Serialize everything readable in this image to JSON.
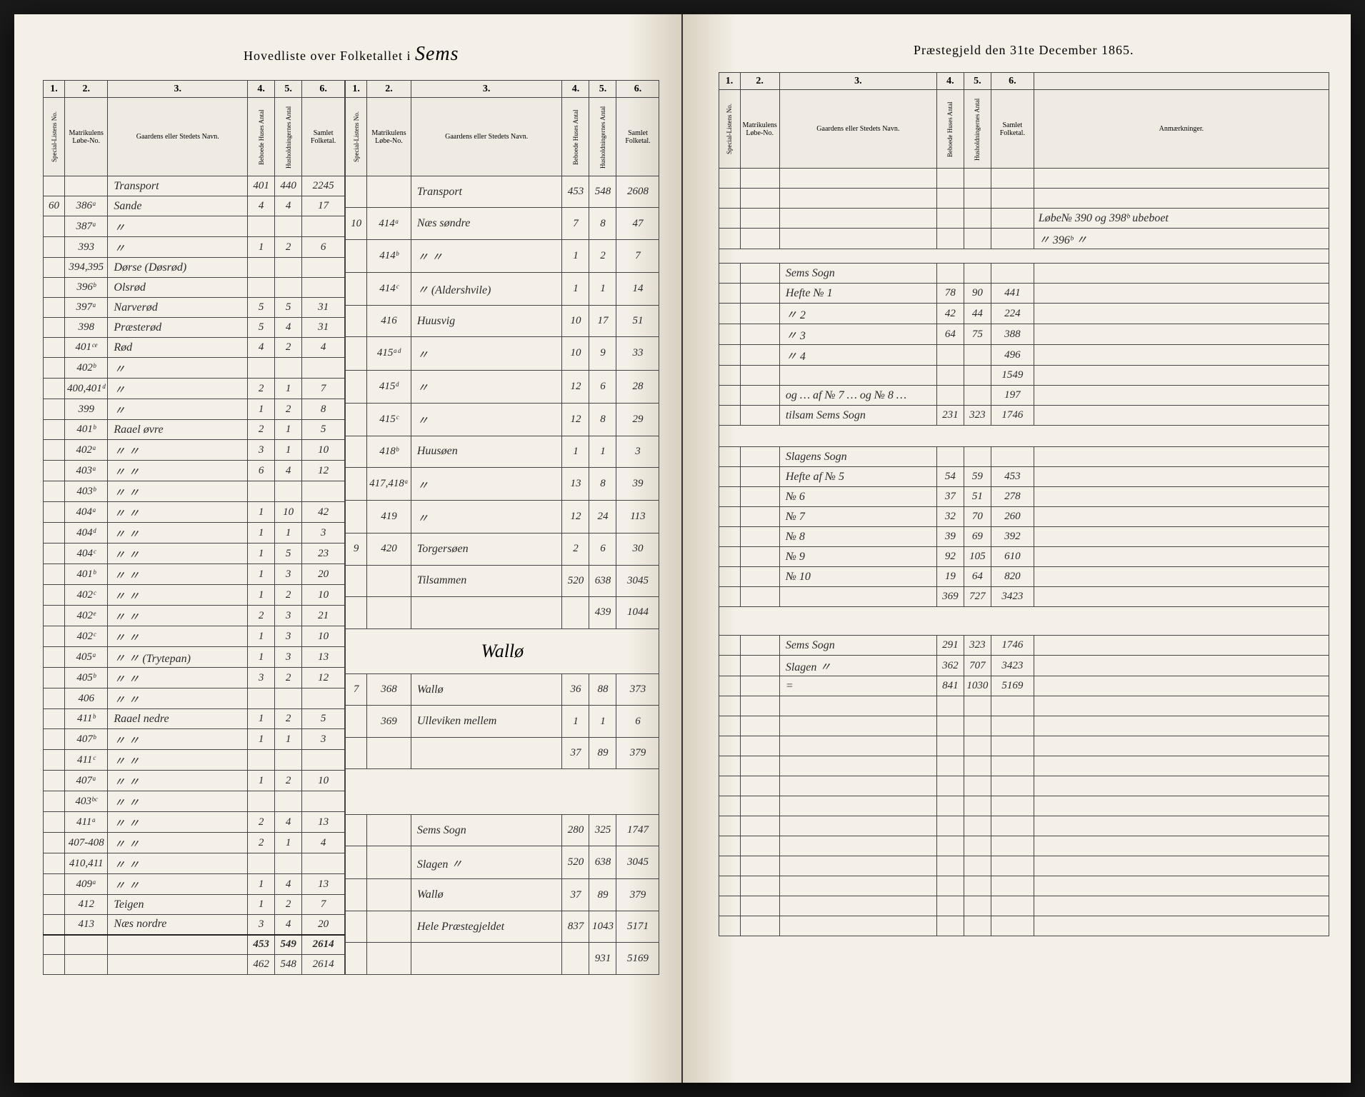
{
  "header": {
    "left_title_prefix": "Hovedliste over Folketallet i",
    "left_title_script": "Sems",
    "right_title": "Præstegjeld den 31te December 1865."
  },
  "columns": {
    "c1": "1.",
    "c2": "2.",
    "c3": "3.",
    "c4": "4.",
    "c5": "5.",
    "c6": "6.",
    "h1": "Special-Listens No.",
    "h2": "Matrikulens Løbe-No.",
    "h3": "Gaardens eller Stedets Navn.",
    "h4": "Beboede Huses Antal",
    "h5": "Husholdningernes Antal",
    "h6": "Samlet Folketal.",
    "remarks": "Anmærkninger."
  },
  "leftA": {
    "rows": [
      {
        "c1": "",
        "c2": "",
        "c3": "Transport",
        "c4": "401",
        "c5": "440",
        "c6": "2245"
      },
      {
        "c1": "60",
        "c2": "386ᵃ",
        "c3": "Sande",
        "c4": "4",
        "c5": "4",
        "c6": "17"
      },
      {
        "c1": "",
        "c2": "387ᵃ",
        "c3": "〃",
        "c4": "",
        "c5": "",
        "c6": ""
      },
      {
        "c1": "",
        "c2": "393",
        "c3": "〃",
        "c4": "1",
        "c5": "2",
        "c6": "6"
      },
      {
        "c1": "",
        "c2": "394,395",
        "c3": "Dørse (Døsrød)",
        "c4": "",
        "c5": "",
        "c6": ""
      },
      {
        "c1": "",
        "c2": "396ᵇ",
        "c3": "Olsrød",
        "c4": "",
        "c5": "",
        "c6": ""
      },
      {
        "c1": "",
        "c2": "397ᵃ",
        "c3": "Narverød",
        "c4": "5",
        "c5": "5",
        "c6": "31"
      },
      {
        "c1": "",
        "c2": "398",
        "c3": "Præsterød",
        "c4": "5",
        "c5": "4",
        "c6": "31"
      },
      {
        "c1": "",
        "c2": "401ᶜᵉ",
        "c3": "Rød",
        "c4": "4",
        "c5": "2",
        "c6": "4"
      },
      {
        "c1": "",
        "c2": "402ᵇ",
        "c3": "〃",
        "c4": "",
        "c5": "",
        "c6": ""
      },
      {
        "c1": "",
        "c2": "400,401ᵈ",
        "c3": "〃",
        "c4": "2",
        "c5": "1",
        "c6": "7"
      },
      {
        "c1": "",
        "c2": "399",
        "c3": "〃",
        "c4": "1",
        "c5": "2",
        "c6": "8"
      },
      {
        "c1": "",
        "c2": "401ᵇ",
        "c3": "Raael øvre",
        "c4": "2",
        "c5": "1",
        "c6": "5"
      },
      {
        "c1": "",
        "c2": "402ᵃ",
        "c3": "〃 〃",
        "c4": "3",
        "c5": "1",
        "c6": "10"
      },
      {
        "c1": "",
        "c2": "403ᵃ",
        "c3": "〃 〃",
        "c4": "6",
        "c5": "4",
        "c6": "12"
      },
      {
        "c1": "",
        "c2": "403ᵇ",
        "c3": "〃 〃",
        "c4": "",
        "c5": "",
        "c6": ""
      },
      {
        "c1": "",
        "c2": "404ᵃ",
        "c3": "〃 〃",
        "c4": "1",
        "c5": "10",
        "c6": "42"
      },
      {
        "c1": "",
        "c2": "404ᵈ",
        "c3": "〃 〃",
        "c4": "1",
        "c5": "1",
        "c6": "3"
      },
      {
        "c1": "",
        "c2": "404ᶜ",
        "c3": "〃 〃",
        "c4": "1",
        "c5": "5",
        "c6": "23"
      },
      {
        "c1": "",
        "c2": "401ᵇ",
        "c3": "〃 〃",
        "c4": "1",
        "c5": "3",
        "c6": "20"
      },
      {
        "c1": "",
        "c2": "402ᶜ",
        "c3": "〃 〃",
        "c4": "1",
        "c5": "2",
        "c6": "10"
      },
      {
        "c1": "",
        "c2": "402ᵉ",
        "c3": "〃 〃",
        "c4": "2",
        "c5": "3",
        "c6": "21"
      },
      {
        "c1": "",
        "c2": "402ᶜ",
        "c3": "〃 〃",
        "c4": "1",
        "c5": "3",
        "c6": "10"
      },
      {
        "c1": "",
        "c2": "405ᵃ",
        "c3": "〃 〃 (Trytepan)",
        "c4": "1",
        "c5": "3",
        "c6": "13"
      },
      {
        "c1": "",
        "c2": "405ᵇ",
        "c3": "〃 〃",
        "c4": "3",
        "c5": "2",
        "c6": "12"
      },
      {
        "c1": "",
        "c2": "406",
        "c3": "〃 〃",
        "c4": "",
        "c5": "",
        "c6": ""
      },
      {
        "c1": "",
        "c2": "411ᵇ",
        "c3": "Raael nedre",
        "c4": "1",
        "c5": "2",
        "c6": "5"
      },
      {
        "c1": "",
        "c2": "407ᵇ",
        "c3": "〃 〃",
        "c4": "1",
        "c5": "1",
        "c6": "3"
      },
      {
        "c1": "",
        "c2": "411ᶜ",
        "c3": "〃 〃",
        "c4": "",
        "c5": "",
        "c6": ""
      },
      {
        "c1": "",
        "c2": "407ᵃ",
        "c3": "〃 〃",
        "c4": "1",
        "c5": "2",
        "c6": "10"
      },
      {
        "c1": "",
        "c2": "403ᵇᶜ",
        "c3": "〃 〃",
        "c4": "",
        "c5": "",
        "c6": ""
      },
      {
        "c1": "",
        "c2": "411ᵃ",
        "c3": "〃 〃",
        "c4": "2",
        "c5": "4",
        "c6": "13"
      },
      {
        "c1": "",
        "c2": "407-408",
        "c3": "〃 〃",
        "c4": "2",
        "c5": "1",
        "c6": "4"
      },
      {
        "c1": "",
        "c2": "410,411",
        "c3": "〃 〃",
        "c4": "",
        "c5": "",
        "c6": ""
      },
      {
        "c1": "",
        "c2": "409ᵃ",
        "c3": "〃 〃",
        "c4": "1",
        "c5": "4",
        "c6": "13"
      },
      {
        "c1": "",
        "c2": "412",
        "c3": "Teigen",
        "c4": "1",
        "c5": "2",
        "c6": "7"
      },
      {
        "c1": "",
        "c2": "413",
        "c3": "Næs nordre",
        "c4": "3",
        "c5": "4",
        "c6": "20"
      }
    ],
    "footer": {
      "c4": "453",
      "c5": "549",
      "c6": "2614"
    },
    "footer2": {
      "c4": "462",
      "c5": "548",
      "c6": "2614"
    }
  },
  "leftB": {
    "rows": [
      {
        "c1": "",
        "c2": "",
        "c3": "Transport",
        "c4": "453",
        "c5": "548",
        "c6": "2608"
      },
      {
        "c1": "10",
        "c2": "414ᵃ",
        "c3": "Næs søndre",
        "c4": "7",
        "c5": "8",
        "c6": "47"
      },
      {
        "c1": "",
        "c2": "414ᵇ",
        "c3": "〃 〃",
        "c4": "1",
        "c5": "2",
        "c6": "7"
      },
      {
        "c1": "",
        "c2": "414ᶜ",
        "c3": "〃 (Aldershvile)",
        "c4": "1",
        "c5": "1",
        "c6": "14"
      },
      {
        "c1": "",
        "c2": "416",
        "c3": "Huusvig",
        "c4": "10",
        "c5": "17",
        "c6": "51"
      },
      {
        "c1": "",
        "c2": "415ᵃᵈ",
        "c3": "〃",
        "c4": "10",
        "c5": "9",
        "c6": "33"
      },
      {
        "c1": "",
        "c2": "415ᵈ",
        "c3": "〃",
        "c4": "12",
        "c5": "6",
        "c6": "28"
      },
      {
        "c1": "",
        "c2": "415ᶜ",
        "c3": "〃",
        "c4": "12",
        "c5": "8",
        "c6": "29"
      },
      {
        "c1": "",
        "c2": "418ᵇ",
        "c3": "Huusøen",
        "c4": "1",
        "c5": "1",
        "c6": "3"
      },
      {
        "c1": "",
        "c2": "417,418ᵃ",
        "c3": "〃",
        "c4": "13",
        "c5": "8",
        "c6": "39"
      },
      {
        "c1": "",
        "c2": "419",
        "c3": "〃",
        "c4": "12",
        "c5": "24",
        "c6": "113"
      },
      {
        "c1": "9",
        "c2": "420",
        "c3": "Torgersøen",
        "c4": "2",
        "c5": "6",
        "c6": "30"
      },
      {
        "c1": "",
        "c2": "",
        "c3": "Tilsammen",
        "c4": "520",
        "c5": "638",
        "c6": "3045"
      },
      {
        "c1": "",
        "c2": "",
        "c3": "",
        "c4": "",
        "c5": "439",
        "c6": "1044"
      }
    ],
    "section": "Wallø",
    "rows2": [
      {
        "c1": "7",
        "c2": "368",
        "c3": "Wallø",
        "c4": "36",
        "c5": "88",
        "c6": "373"
      },
      {
        "c1": "",
        "c2": "369",
        "c3": "Ulleviken mellem",
        "c4": "1",
        "c5": "1",
        "c6": "6"
      },
      {
        "c1": "",
        "c2": "",
        "c3": "",
        "c4": "37",
        "c5": "89",
        "c6": "379"
      }
    ],
    "rows3": [
      {
        "c3": "Sems Sogn",
        "c4": "280",
        "c5": "325",
        "c6": "1747"
      },
      {
        "c3": "Slagen 〃",
        "c4": "520",
        "c5": "638",
        "c6": "3045"
      },
      {
        "c3": "Wallø",
        "c4": "37",
        "c5": "89",
        "c6": "379"
      },
      {
        "c3": "Hele Præstegjeldet",
        "c4": "837",
        "c5": "1043",
        "c6": "5171"
      },
      {
        "c3": "",
        "c4": "",
        "c5": "931",
        "c6": "5169"
      }
    ]
  },
  "right": {
    "remarks_top": [
      "Løbe№ 390 og 398ᵇ ubeboet",
      "〃   396ᵇ   〃"
    ],
    "rowsA": [
      {
        "c3": "Sems Sogn",
        "c4": "",
        "c5": "",
        "c6": ""
      },
      {
        "c3": "Hefte № 1",
        "c4": "78",
        "c5": "90",
        "c6": "441"
      },
      {
        "c3": "〃 2",
        "c4": "42",
        "c5": "44",
        "c6": "224"
      },
      {
        "c3": "〃 3",
        "c4": "64",
        "c5": "75",
        "c6": "388"
      },
      {
        "c3": "〃 4",
        "c4": "",
        "c5": "",
        "c6": "496"
      },
      {
        "c3": "",
        "c4": "",
        "c5": "",
        "c6": "1549"
      },
      {
        "c3": "og … af № 7 … og № 8 …",
        "c4": "",
        "c5": "",
        "c6": "197"
      },
      {
        "c3": "tilsam Sems Sogn",
        "c4": "231",
        "c5": "323",
        "c6": "1746"
      }
    ],
    "rowsB": [
      {
        "c3": "Slagens Sogn",
        "c4": "",
        "c5": "",
        "c6": ""
      },
      {
        "c3": "Hefte af № 5",
        "c4": "54",
        "c5": "59",
        "c6": "453"
      },
      {
        "c3": "№ 6",
        "c4": "37",
        "c5": "51",
        "c6": "278"
      },
      {
        "c3": "№ 7",
        "c4": "32",
        "c5": "70",
        "c6": "260"
      },
      {
        "c3": "№ 8",
        "c4": "39",
        "c5": "69",
        "c6": "392"
      },
      {
        "c3": "№ 9",
        "c4": "92",
        "c5": "105",
        "c6": "610"
      },
      {
        "c3": "№ 10",
        "c4": "19",
        "c5": "64",
        "c6": "820"
      },
      {
        "c3": "",
        "c4": "369",
        "c5": "727",
        "c6": "3423"
      }
    ],
    "rowsC": [
      {
        "c3": "Sems Sogn",
        "c4": "291",
        "c5": "323",
        "c6": "1746"
      },
      {
        "c3": "Slagen 〃",
        "c4": "362",
        "c5": "707",
        "c6": "3423"
      },
      {
        "c3": "=",
        "c4": "841",
        "c5": "1030",
        "c6": "5169"
      }
    ]
  }
}
